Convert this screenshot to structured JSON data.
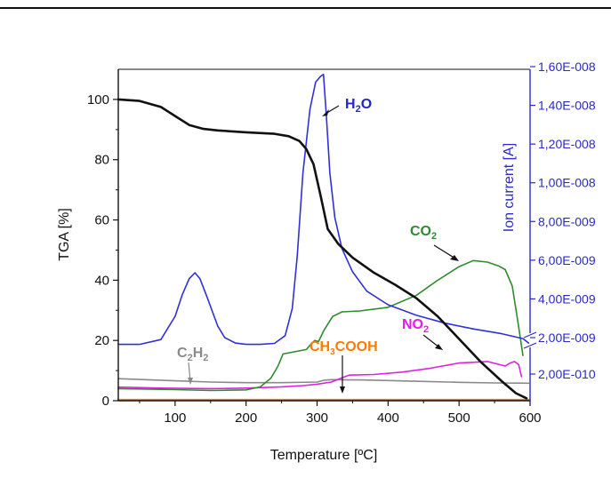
{
  "colors": {
    "axis_left": "#111111",
    "axis_right": "#2a2ac8",
    "TGA": "#111111",
    "H2O": "#3030d8",
    "CO2": "#2e8b2e",
    "NO2": "#e020e0",
    "C2H2": "#8a8a8a",
    "CH3COOH": "#ff8000"
  },
  "chart_data": {
    "type": "line",
    "xlabel": "Temperature [ºC]",
    "ylabel_left": "TGA [%]",
    "ylabel_right": "Ion current [A]",
    "xlim": [
      20,
      600
    ],
    "ylim_left": [
      0,
      110
    ],
    "x_ticks": [
      "100",
      "200",
      "300",
      "400",
      "500",
      "600"
    ],
    "y_left_ticks": [
      "0",
      "20",
      "40",
      "60",
      "80",
      "100"
    ],
    "y_right_ticks": [
      "2,00E-010",
      "2,00E-009",
      "4,00E-009",
      "6,00E-009",
      "8,00E-009",
      "1,00E-008",
      "1,20E-008",
      "1,40E-008",
      "1,60E-008"
    ],
    "grid": false,
    "annotations": {
      "H2O": "H2O",
      "CO2": "CO2",
      "NO2": "NO2",
      "C2H2": "C2H2",
      "CH3COOH": "CH3COOH"
    },
    "series": [
      {
        "name": "TGA",
        "axis": "left",
        "x": [
          20,
          50,
          80,
          100,
          120,
          140,
          160,
          200,
          240,
          260,
          275,
          285,
          295,
          305,
          315,
          330,
          350,
          380,
          410,
          440,
          470,
          500,
          530,
          560,
          580,
          595
        ],
        "y": [
          100,
          99.5,
          97.5,
          94.5,
          91.5,
          90.2,
          89.7,
          89.1,
          88.6,
          87.8,
          86.2,
          83.5,
          78.5,
          68,
          57,
          52,
          47.5,
          42.5,
          38.5,
          34,
          28,
          20.5,
          13,
          6.5,
          2.5,
          0.8
        ]
      },
      {
        "name": "H2O",
        "axis": "right",
        "x": [
          20,
          50,
          80,
          100,
          110,
          120,
          128,
          135,
          145,
          160,
          170,
          185,
          200,
          220,
          240,
          255,
          265,
          272,
          280,
          290,
          298,
          305,
          309,
          313,
          318,
          325,
          335,
          350,
          370,
          400,
          440,
          480,
          520,
          560,
          590,
          598
        ],
        "y": [
          1.65e-09,
          1.65e-09,
          1.9e-09,
          3.1e-09,
          4.2e-09,
          5.05e-09,
          5.35e-09,
          5.05e-09,
          4.1e-09,
          2.6e-09,
          2e-09,
          1.72e-09,
          1.65e-09,
          1.65e-09,
          1.7e-09,
          2.1e-09,
          3.5e-09,
          6.2e-09,
          1.05e-08,
          1.38e-08,
          1.52e-08,
          1.55e-08,
          1.56e-08,
          1.35e-08,
          1.05e-08,
          8.2e-09,
          6.6e-09,
          5.4e-09,
          4.4e-09,
          3.7e-09,
          3.15e-09,
          2.75e-09,
          2.45e-09,
          2.2e-09,
          1.95e-09,
          1.72e-09
        ]
      },
      {
        "name": "CO2",
        "axis": "left",
        "x": [
          20,
          100,
          150,
          200,
          220,
          235,
          245,
          252,
          285,
          292,
          297,
          302,
          310,
          322,
          335,
          360,
          400,
          440,
          470,
          500,
          520,
          540,
          555,
          565,
          575,
          583,
          590
        ],
        "y": [
          4,
          3.7,
          3.4,
          3.6,
          4.6,
          7.5,
          11.5,
          15.5,
          17,
          19,
          20,
          19.6,
          23.5,
          28,
          29.5,
          29.8,
          31,
          35,
          40,
          44.5,
          46.5,
          46,
          44.8,
          43.5,
          38,
          26,
          15
        ]
      },
      {
        "name": "NO2",
        "axis": "left",
        "x": [
          20,
          80,
          150,
          200,
          250,
          280,
          300,
          320,
          345,
          380,
          420,
          460,
          500,
          540,
          565,
          572,
          578,
          584,
          588
        ],
        "y": [
          4.5,
          4.2,
          4.0,
          4.2,
          4.6,
          5.0,
          5.5,
          6.2,
          8.5,
          8.7,
          9.5,
          10.8,
          12.5,
          13.0,
          11.5,
          12.5,
          13.0,
          12.0,
          8.0
        ]
      },
      {
        "name": "C2H2",
        "axis": "left",
        "x": [
          20,
          100,
          150,
          200,
          250,
          300,
          310,
          320,
          340,
          360,
          400,
          450,
          500,
          550,
          598
        ],
        "y": [
          7.3,
          6.6,
          6.2,
          6.0,
          6.0,
          6.2,
          6.8,
          7.0,
          6.9,
          6.9,
          6.7,
          6.4,
          6.1,
          5.9,
          5.8
        ]
      },
      {
        "name": "CH3COOH",
        "axis": "left",
        "x": [
          20,
          600
        ],
        "y": [
          0.3,
          0.3
        ]
      }
    ]
  }
}
